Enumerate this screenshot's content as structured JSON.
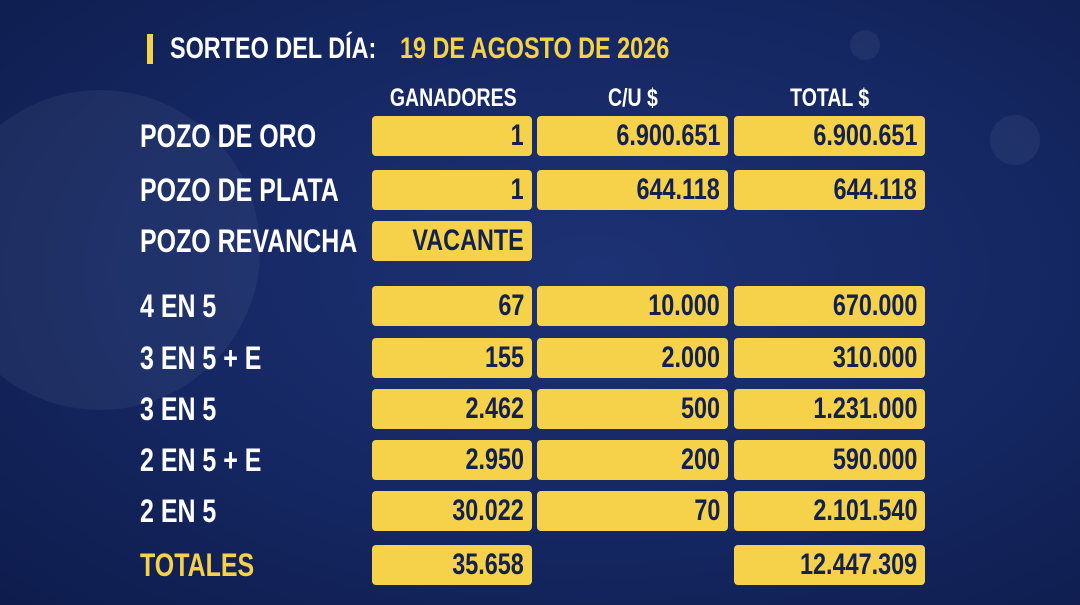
{
  "header": {
    "label": "SORTEO DEL DÍA:",
    "date": "19 DE AGOSTO DE 2026"
  },
  "table": {
    "columns": [
      "GANADORES",
      "C/U $",
      "TOTAL $"
    ],
    "rows": [
      [
        "POZO DE ORO",
        "1",
        "6.900.651",
        "6.900.651"
      ],
      [
        "POZO DE PLATA",
        "1",
        "644.118",
        "644.118"
      ],
      [
        "POZO REVANCHA",
        "VACANTE",
        null,
        null
      ],
      [
        "4 EN 5",
        "67",
        "10.000",
        "670.000"
      ],
      [
        "3 EN 5 + E",
        "155",
        "2.000",
        "310.000"
      ],
      [
        "3 EN 5",
        "2.462",
        "500",
        "1.231.000"
      ],
      [
        "2 EN 5 + E",
        "2.950",
        "200",
        "590.000"
      ],
      [
        "2 EN 5",
        "30.022",
        "70",
        "2.101.540"
      ],
      [
        "TOTALES",
        "35.658",
        null,
        "12.447.309"
      ]
    ]
  }
}
